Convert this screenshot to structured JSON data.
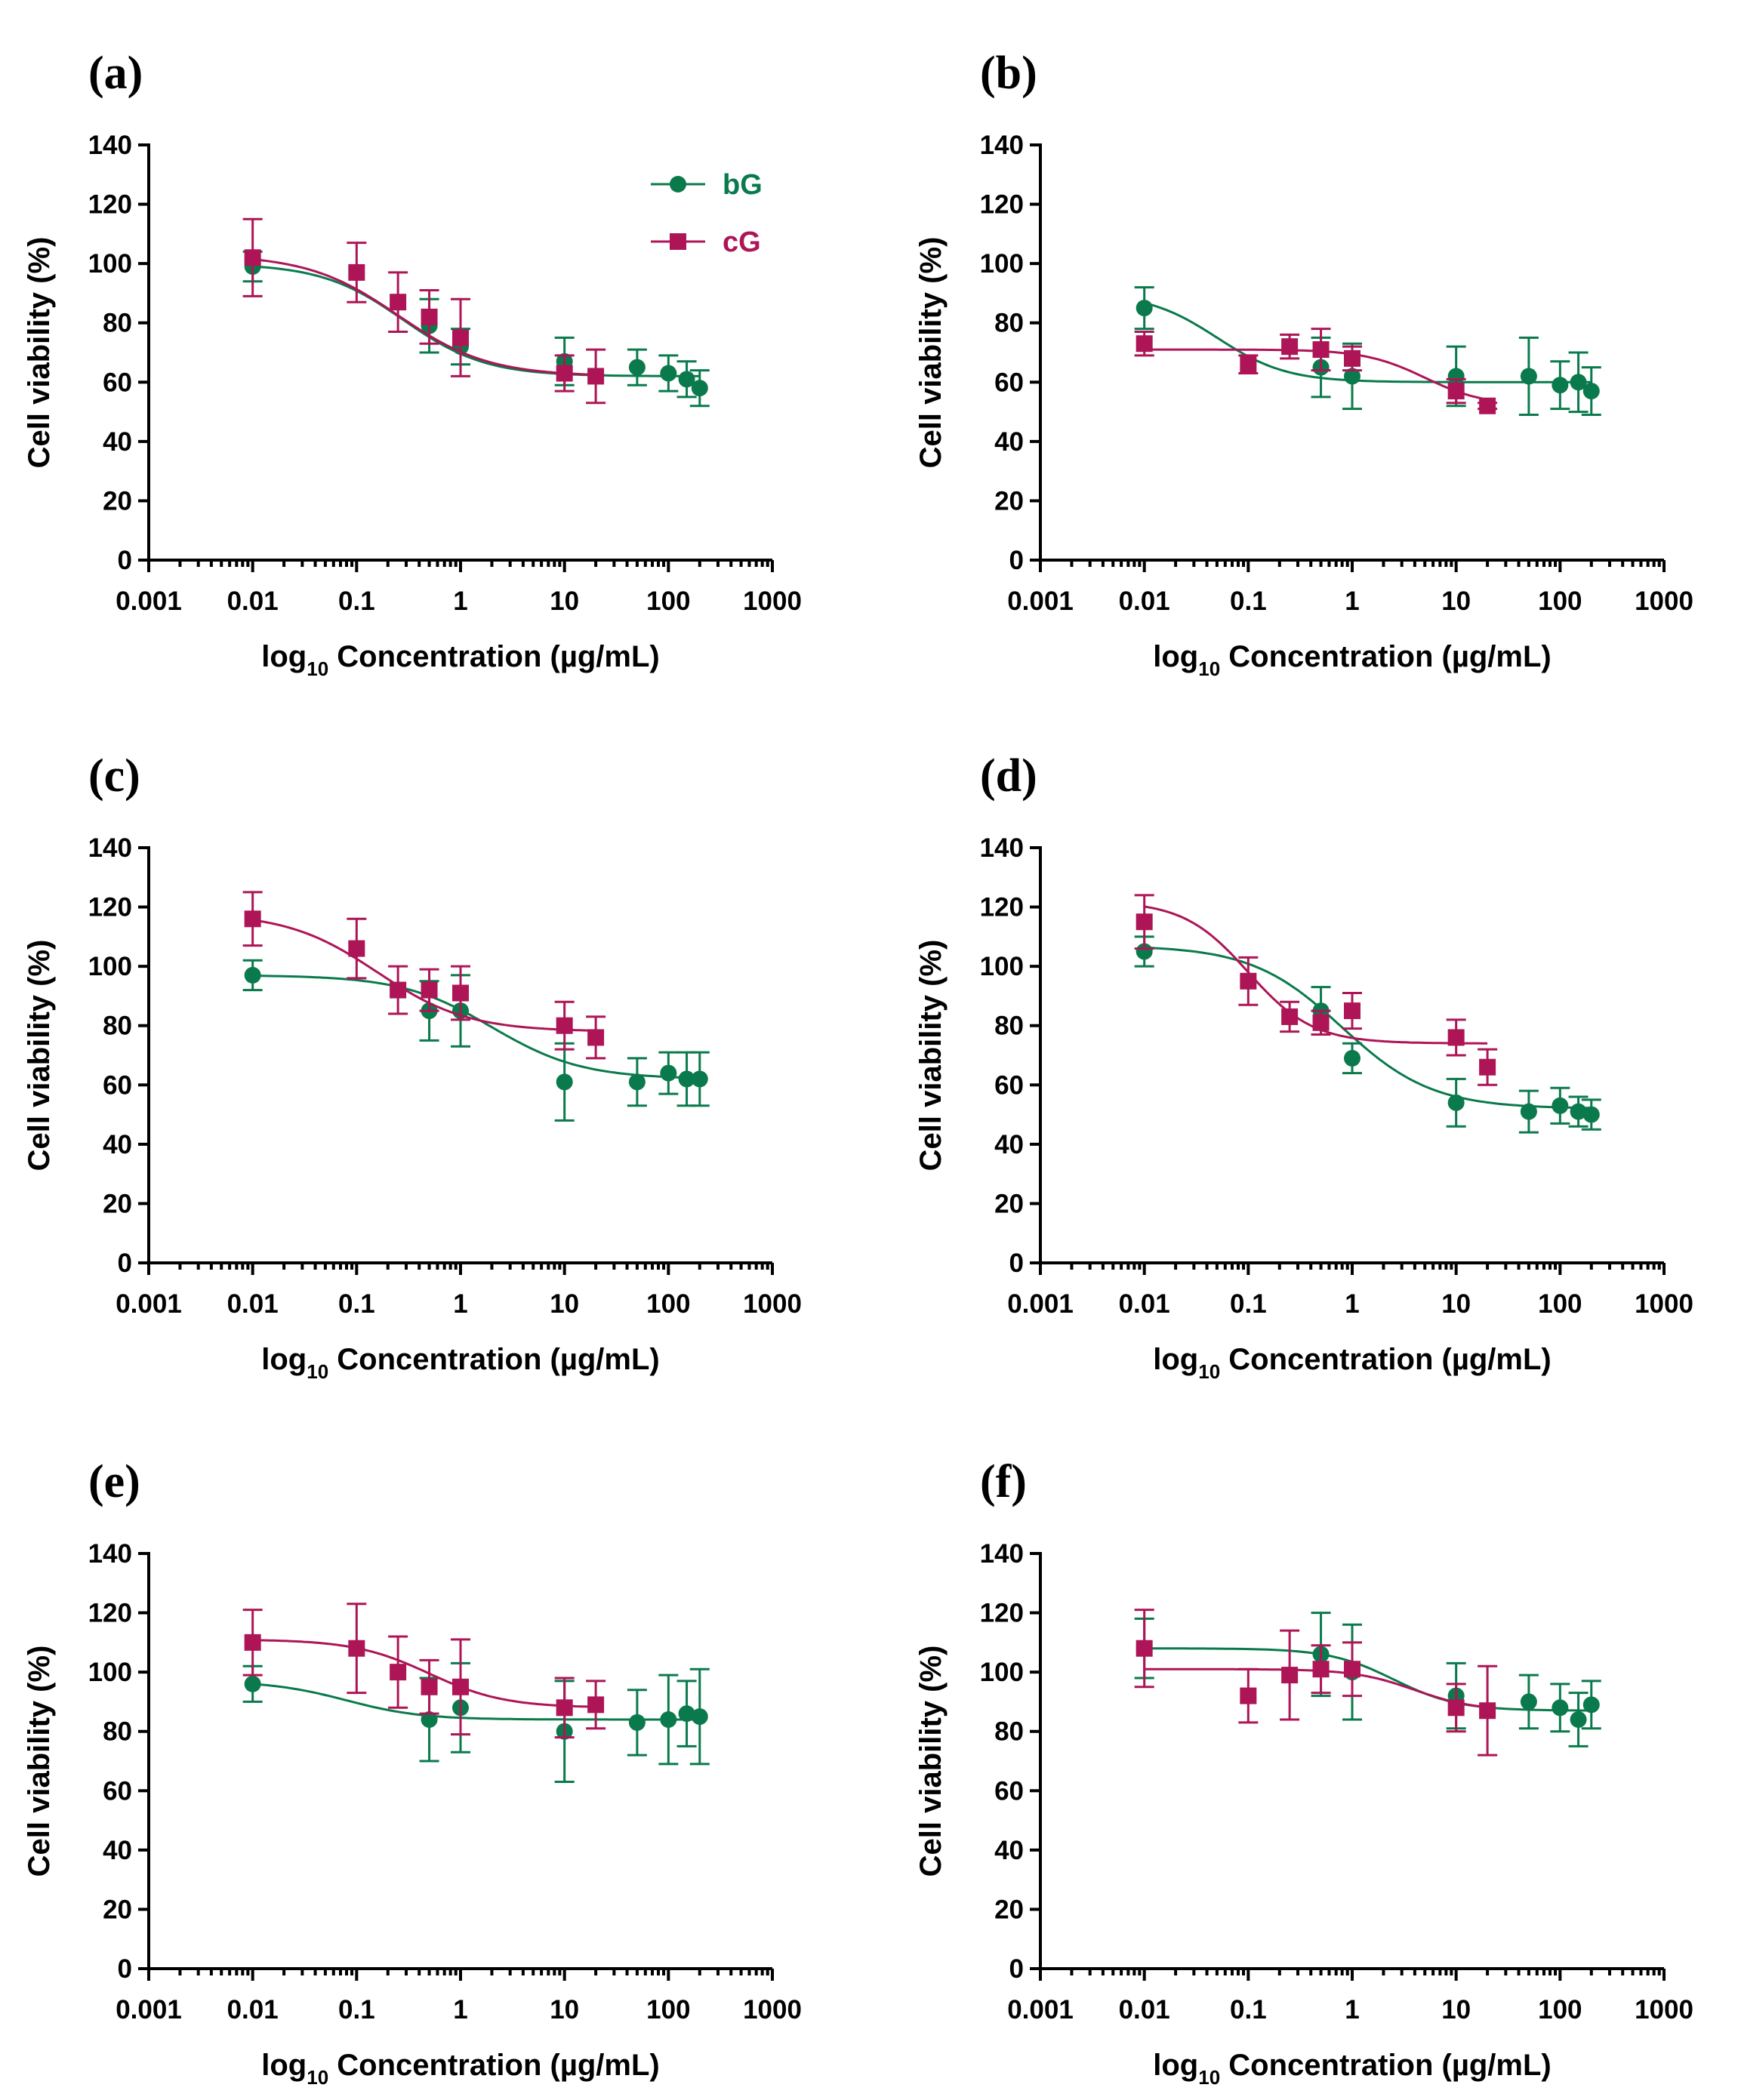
{
  "colors": {
    "bG": "#0a7a4c",
    "cG": "#ad1557",
    "axis": "#000000"
  },
  "legend": {
    "placement": "top-right",
    "bG_label": "bG",
    "cG_label": "cG"
  },
  "chart_data": [
    {
      "type": "scatter",
      "label": "(a)",
      "xlabel_prefix": "log",
      "xlabel_sub": "10",
      "xlabel_rest": " Concentration (µg/mL)",
      "ylabel": "Cell viability (%)",
      "xscale": "log",
      "xlim": [
        0.001,
        1000
      ],
      "ylim": [
        0,
        140
      ],
      "yticks": [
        "0",
        "20",
        "40",
        "60",
        "80",
        "100",
        "120",
        "140"
      ],
      "xticks": [
        "0.001",
        "0.01",
        "0.1",
        "1",
        "10",
        "100",
        "1000"
      ],
      "show_legend": true,
      "series": [
        {
          "name": "bG",
          "marker": "circle",
          "x": [
            0.01,
            0.5,
            1,
            10,
            50,
            100,
            150,
            200
          ],
          "y": [
            99,
            79,
            72,
            67,
            65,
            63,
            61,
            58
          ],
          "err": [
            5,
            9,
            6,
            8,
            6,
            6,
            6,
            6
          ],
          "fit": {
            "top": 100,
            "bottom": 62,
            "log_ec50": -0.55,
            "slope": 1.1
          }
        },
        {
          "name": "cG",
          "marker": "square",
          "x": [
            0.01,
            0.1,
            0.25,
            0.5,
            1,
            10,
            20
          ],
          "y": [
            102,
            97,
            87,
            82,
            75,
            63,
            62
          ],
          "err": [
            13,
            10,
            10,
            9,
            13,
            6,
            9
          ],
          "fit": {
            "top": 103,
            "bottom": 62,
            "log_ec50": -0.6,
            "slope": 1.0
          }
        }
      ]
    },
    {
      "type": "scatter",
      "label": "(b)",
      "xlabel_prefix": "log",
      "xlabel_sub": "10",
      "xlabel_rest": " Concentration (µg/mL)",
      "ylabel": "Cell viability (%)",
      "xscale": "log",
      "xlim": [
        0.001,
        1000
      ],
      "ylim": [
        0,
        140
      ],
      "yticks": [
        "0",
        "20",
        "40",
        "60",
        "80",
        "100",
        "120",
        "140"
      ],
      "xticks": [
        "0.001",
        "0.01",
        "0.1",
        "1",
        "10",
        "100",
        "1000"
      ],
      "show_legend": false,
      "series": [
        {
          "name": "bG",
          "marker": "circle",
          "x": [
            0.01,
            0.5,
            1,
            10,
            50,
            100,
            150,
            200
          ],
          "y": [
            85,
            65,
            62,
            62,
            62,
            59,
            60,
            57
          ],
          "err": [
            7,
            10,
            11,
            10,
            13,
            8,
            10,
            8
          ],
          "fit": {
            "top": 90,
            "bottom": 60,
            "log_ec50": -1.3,
            "slope": 1.3
          }
        },
        {
          "name": "cG",
          "marker": "square",
          "x": [
            0.01,
            0.1,
            0.25,
            0.5,
            1,
            10,
            20
          ],
          "y": [
            73,
            66,
            72,
            71,
            68,
            57,
            52
          ],
          "err": [
            4,
            3,
            4,
            7,
            4,
            4,
            1
          ],
          "fit": {
            "top": 71,
            "bottom": 52,
            "log_ec50": 0.7,
            "slope": 1.5
          }
        }
      ]
    },
    {
      "type": "scatter",
      "label": "(c)",
      "xlabel_prefix": "log",
      "xlabel_sub": "10",
      "xlabel_rest": " Concentration (µg/mL)",
      "ylabel": "Cell viability (%)",
      "xscale": "log",
      "xlim": [
        0.001,
        1000
      ],
      "ylim": [
        0,
        140
      ],
      "yticks": [
        "0",
        "20",
        "40",
        "60",
        "80",
        "100",
        "120",
        "140"
      ],
      "xticks": [
        "0.001",
        "0.01",
        "0.1",
        "1",
        "10",
        "100",
        "1000"
      ],
      "show_legend": false,
      "series": [
        {
          "name": "bG",
          "marker": "circle",
          "x": [
            0.01,
            0.5,
            1,
            10,
            50,
            100,
            150,
            200
          ],
          "y": [
            97,
            85,
            85,
            61,
            61,
            64,
            62,
            62
          ],
          "err": [
            5,
            10,
            12,
            13,
            8,
            7,
            9,
            9
          ],
          "fit": {
            "top": 97,
            "bottom": 62,
            "log_ec50": 0.3,
            "slope": 1.0
          }
        },
        {
          "name": "cG",
          "marker": "square",
          "x": [
            0.01,
            0.1,
            0.25,
            0.5,
            1,
            10,
            20
          ],
          "y": [
            116,
            106,
            92,
            92,
            91,
            80,
            76
          ],
          "err": [
            9,
            10,
            8,
            7,
            9,
            8,
            7
          ],
          "fit": {
            "top": 118,
            "bottom": 78,
            "log_ec50": -0.8,
            "slope": 1.0
          }
        }
      ]
    },
    {
      "type": "scatter",
      "label": "(d)",
      "xlabel_prefix": "log",
      "xlabel_sub": "10",
      "xlabel_rest": " Concentration (µg/mL)",
      "ylabel": "Cell viability (%)",
      "xscale": "log",
      "xlim": [
        0.001,
        1000
      ],
      "ylim": [
        0,
        140
      ],
      "yticks": [
        "0",
        "20",
        "40",
        "60",
        "80",
        "100",
        "120",
        "140"
      ],
      "xticks": [
        "0.001",
        "0.01",
        "0.1",
        "1",
        "10",
        "100",
        "1000"
      ],
      "show_legend": false,
      "series": [
        {
          "name": "bG",
          "marker": "circle",
          "x": [
            0.01,
            0.5,
            1,
            10,
            50,
            100,
            150,
            200
          ],
          "y": [
            105,
            85,
            69,
            54,
            51,
            53,
            51,
            50
          ],
          "err": [
            5,
            8,
            5,
            8,
            7,
            6,
            5,
            5
          ],
          "fit": {
            "top": 107,
            "bottom": 52,
            "log_ec50": -0.1,
            "slope": 1.0
          }
        },
        {
          "name": "cG",
          "marker": "square",
          "x": [
            0.01,
            0.1,
            0.25,
            0.5,
            1,
            10,
            20
          ],
          "y": [
            115,
            95,
            83,
            81,
            85,
            76,
            66
          ],
          "err": [
            9,
            8,
            5,
            4,
            6,
            6,
            6
          ],
          "fit": {
            "top": 122,
            "bottom": 74,
            "log_ec50": -1.0,
            "slope": 1.4
          }
        }
      ]
    },
    {
      "type": "scatter",
      "label": "(e)",
      "xlabel_prefix": "log",
      "xlabel_sub": "10",
      "xlabel_rest": " Concentration (µg/mL)",
      "ylabel": "Cell viability (%)",
      "xscale": "log",
      "xlim": [
        0.001,
        1000
      ],
      "ylim": [
        0,
        140
      ],
      "yticks": [
        "0",
        "20",
        "40",
        "60",
        "80",
        "100",
        "120",
        "140"
      ],
      "xticks": [
        "0.001",
        "0.01",
        "0.1",
        "1",
        "10",
        "100",
        "1000"
      ],
      "show_legend": false,
      "series": [
        {
          "name": "bG",
          "marker": "circle",
          "x": [
            0.01,
            0.5,
            1,
            10,
            50,
            100,
            150,
            200
          ],
          "y": [
            96,
            84,
            88,
            80,
            83,
            84,
            86,
            85
          ],
          "err": [
            6,
            14,
            15,
            17,
            11,
            15,
            11,
            16
          ],
          "fit": {
            "top": 97,
            "bottom": 84,
            "log_ec50": -1.1,
            "slope": 1.2
          }
        },
        {
          "name": "cG",
          "marker": "square",
          "x": [
            0.01,
            0.1,
            0.25,
            0.5,
            1,
            10,
            20
          ],
          "y": [
            110,
            108,
            100,
            95,
            95,
            88,
            89
          ],
          "err": [
            11,
            15,
            12,
            9,
            16,
            10,
            8
          ],
          "fit": {
            "top": 111,
            "bottom": 88,
            "log_ec50": -0.3,
            "slope": 1.2
          }
        }
      ]
    },
    {
      "type": "scatter",
      "label": "(f)",
      "xlabel_prefix": "log",
      "xlabel_sub": "10",
      "xlabel_rest": " Concentration (µg/mL)",
      "ylabel": "Cell viability (%)",
      "xscale": "log",
      "xlim": [
        0.001,
        1000
      ],
      "ylim": [
        0,
        140
      ],
      "yticks": [
        "0",
        "20",
        "40",
        "60",
        "80",
        "100",
        "120",
        "140"
      ],
      "xticks": [
        "0.001",
        "0.01",
        "0.1",
        "1",
        "10",
        "100",
        "1000"
      ],
      "show_legend": false,
      "series": [
        {
          "name": "bG",
          "marker": "circle",
          "x": [
            0.01,
            0.5,
            1,
            10,
            50,
            100,
            150,
            200
          ],
          "y": [
            108,
            106,
            100,
            92,
            90,
            88,
            84,
            89
          ],
          "err": [
            10,
            14,
            16,
            11,
            9,
            8,
            9,
            8
          ],
          "fit": {
            "top": 108,
            "bottom": 87,
            "log_ec50": 0.4,
            "slope": 1.4
          }
        },
        {
          "name": "cG",
          "marker": "square",
          "x": [
            0.01,
            0.1,
            0.25,
            0.5,
            1,
            10,
            20
          ],
          "y": [
            108,
            92,
            99,
            101,
            101,
            88,
            87
          ],
          "err": [
            13,
            9,
            15,
            8,
            9,
            8,
            15
          ],
          "fit": {
            "top": 101,
            "bottom": 87,
            "log_ec50": 0.6,
            "slope": 1.5
          }
        }
      ]
    }
  ]
}
